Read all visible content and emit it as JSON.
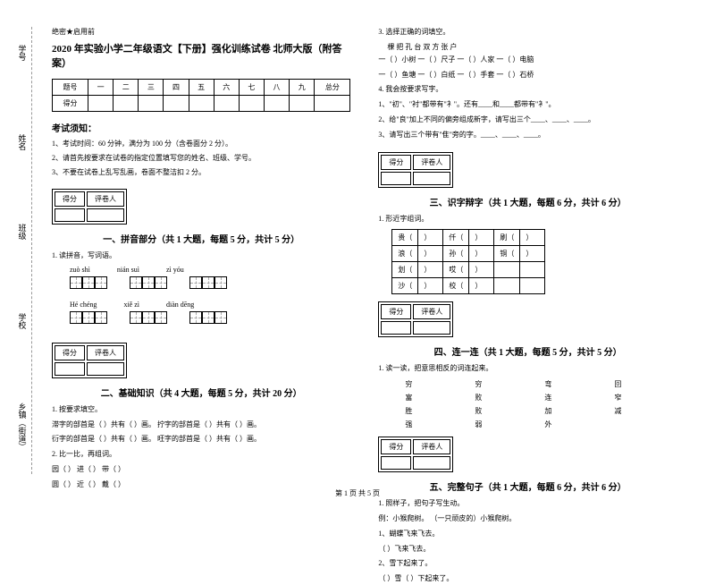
{
  "secret": "绝密★启用前",
  "title": "2020 年实验小学二年级语文【下册】强化训练试卷 北师大版（附答案）",
  "sidebar": {
    "items": [
      "学号",
      "姓名",
      "班级",
      "学校",
      "乡镇（街道）"
    ],
    "marks": [
      "题",
      "答",
      "不",
      "内",
      "线",
      "封"
    ]
  },
  "score_table": {
    "headers": [
      "题号",
      "一",
      "二",
      "三",
      "四",
      "五",
      "六",
      "七",
      "八",
      "九",
      "总分"
    ],
    "row_label": "得分"
  },
  "notice": {
    "title": "考试须知：",
    "items": [
      "1、考试时间：60 分钟，满分为 100 分（含卷面分 2 分）。",
      "2、请首先按要求在试卷的指定位置填写您的姓名、班级、学号。",
      "3、不要在试卷上乱写乱画，卷面不整洁扣 2 分。"
    ]
  },
  "section_box": {
    "col1": "得分",
    "col2": "评卷人"
  },
  "sections": {
    "s1": {
      "title": "一、拼音部分（共 1 大题，每题 5 分，共计 5 分）",
      "q1": "1. 读拼音，写词语。",
      "pinyin": [
        [
          "zuò shì",
          "nián suì",
          "zì yóu"
        ],
        [
          "Hé chéng",
          "xiě zì",
          "diàn dēng"
        ]
      ]
    },
    "s2": {
      "title": "二、基础知识（共 4 大题，每题 5 分，共计 20 分）",
      "q1": "1. 按要求填空。",
      "q1_items": [
        "滞字的部首是（   ）共有（   ）画。          拧字的部首是（   ）共有（   ）画。",
        "衍字的部首是（   ）共有（   ）画。          旺字的部首是（   ）共有（   ）画。"
      ],
      "q2": "2. 比一比，再组词。",
      "q2_items": [
        "园（        ）    进（        ）    带（        ）",
        "圆（        ）    近（        ）    戴（        ）"
      ],
      "q3": "3. 选择正确的词填空。",
      "q3_options": "棵    把    孔    台    双    方    张    户",
      "q3_items": [
        "一（   ）小树    一（   ）尺子    一（   ）人家    一（   ）电脑",
        "一（   ）鱼塘    一（   ）白纸    一（   ）手套    一（   ）石桥"
      ],
      "q4": "4. 我会按要求写字。",
      "q4_items": [
        "1、\"初\"、\"衬\"都带有\"衤\"。还有____和____都带有\"衤\"。",
        "2、给\"良\"加上不同的偏旁组成新字，请写出三个____、____、____。",
        "3、请写出三个带有\"隹\"旁的字。____、____、____。"
      ]
    },
    "s3": {
      "title": "三、识字辩字（共 1 大题，每题 6 分，共计 6 分）",
      "q1": "1. 形近字组词。",
      "table": [
        [
          "贵（",
          "）",
          "仟（",
          "）",
          "刷（",
          "）"
        ],
        [
          "浪（",
          "）",
          "孙（",
          "）",
          "铜（",
          "）"
        ],
        [
          "划（",
          "）",
          "哎（",
          "）",
          "",
          ""
        ],
        [
          "沙（",
          "）",
          "校（",
          "）",
          "",
          ""
        ]
      ]
    },
    "s4": {
      "title": "四、连一连（共 1 大题，每题 5 分，共计 5 分）",
      "q1": "1. 读一读，把意思相反的词连起来。",
      "left": [
        "穷",
        "富",
        "胜",
        "强"
      ],
      "mid": [
        "穷",
        "败",
        "败",
        "弱"
      ],
      "mid2": [
        "弯",
        "连",
        "加",
        "外"
      ],
      "right": [
        "回",
        "窄",
        "减"
      ]
    },
    "s5": {
      "title": "五、完整句子（共 1 大题，每题 6 分，共计 6 分）",
      "q1": "1. 照样子，把句子写生动。",
      "example": "例：小猴爬树。    （一只顽皮的）小猴爬树。",
      "items": [
        "1、蝴蝶飞来飞去。",
        "   （              ）飞来飞去。",
        "2、雪下起来了。",
        "   （     ）雪（        ）下起来了。"
      ]
    }
  },
  "footer": "第 1 页 共 5 页"
}
